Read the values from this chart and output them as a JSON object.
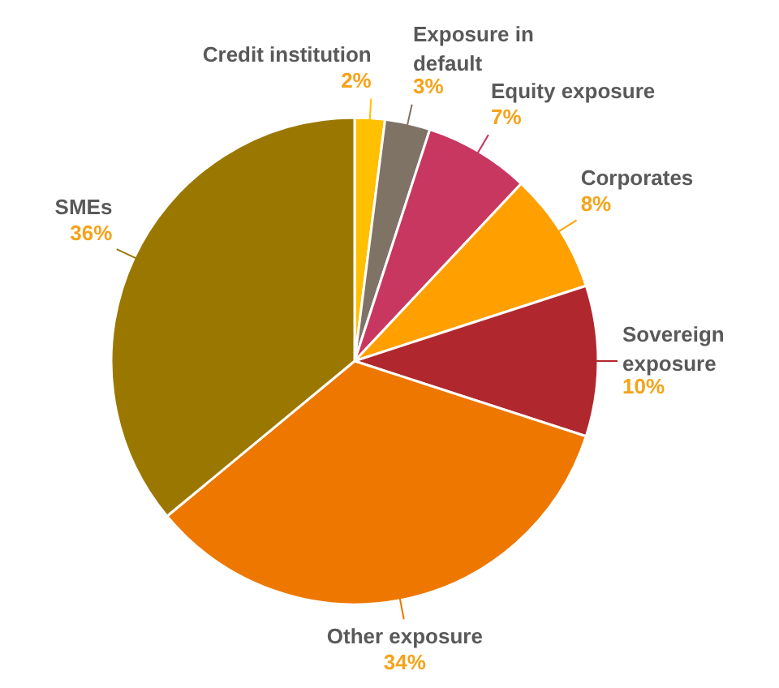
{
  "chart_data": {
    "type": "pie",
    "categories": [
      "Credit institution",
      "Exposure in\ndefault",
      "Equity exposure",
      "Corporates",
      "Sovereign\nexposure",
      "Other exposure",
      "SMEs"
    ],
    "values": [
      2,
      3,
      7,
      8,
      10,
      34,
      36
    ],
    "value_labels": [
      "2%",
      "3%",
      "7%",
      "8%",
      "10%",
      "34%",
      "36%"
    ],
    "colors": [
      "#ffc000",
      "#7f7366",
      "#c8375f",
      "#ffa000",
      "#b0282e",
      "#ee7700",
      "#9a7800"
    ]
  }
}
